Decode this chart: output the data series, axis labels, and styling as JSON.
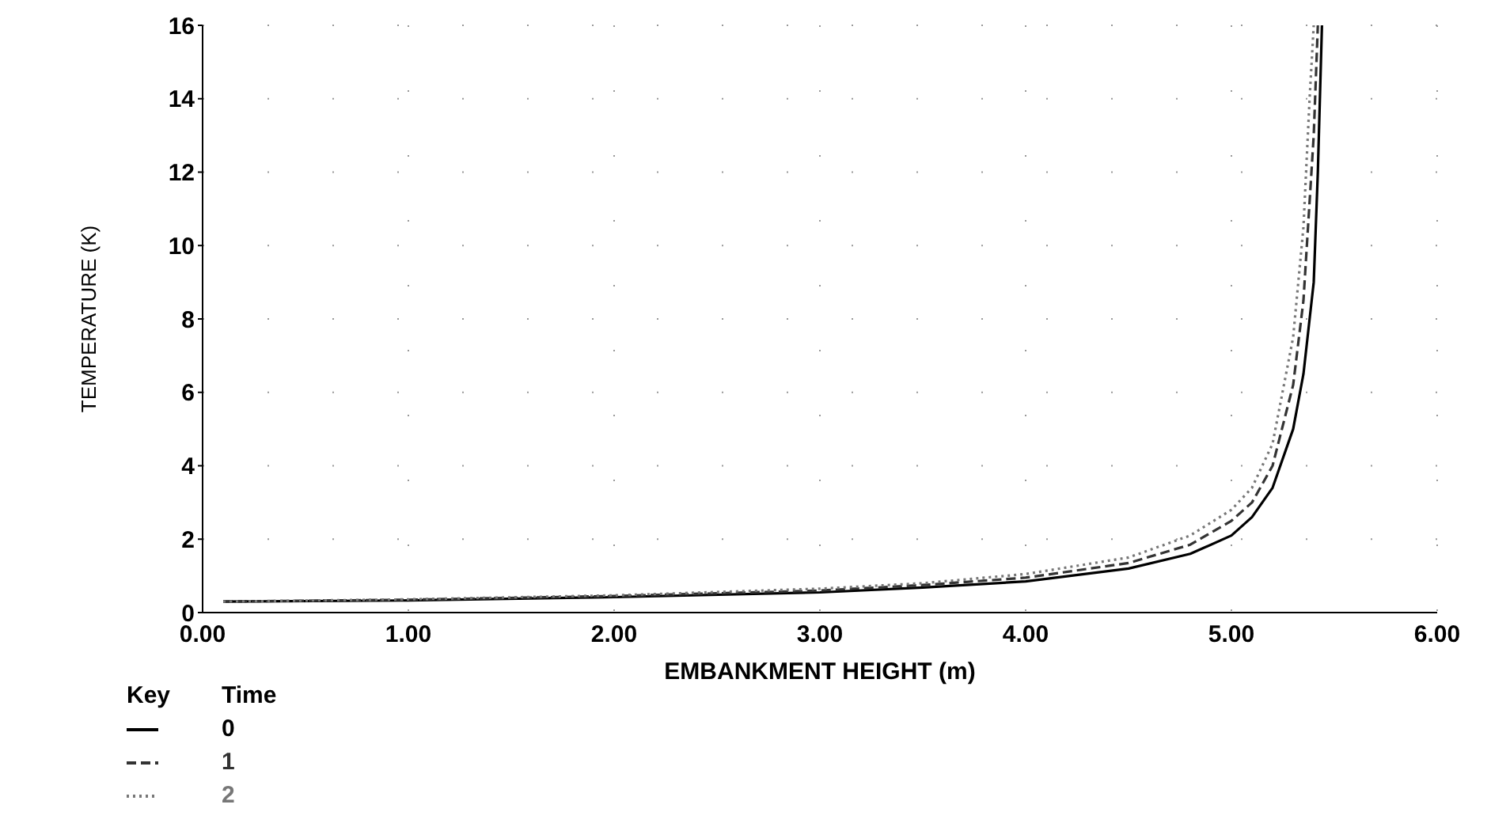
{
  "chart_data": {
    "type": "line",
    "xlabel": "EMBANKMENT HEIGHT (m)",
    "ylabel": "TEMPERATURE (K)",
    "legend_title": "Time",
    "annotations": [
      "Key"
    ],
    "xlim": [
      0,
      6
    ],
    "xticks": [
      {
        "value": 0,
        "label": "0.00"
      },
      {
        "value": 1,
        "label": "1.00"
      },
      {
        "value": 2,
        "label": "2.00"
      },
      {
        "value": 3,
        "label": "3.00"
      },
      {
        "value": 4,
        "label": "4.00"
      },
      {
        "value": 5,
        "label": "5.00"
      },
      {
        "value": 6,
        "label": "6.00"
      }
    ],
    "ylim": [
      0,
      16
    ],
    "yticks": [
      0,
      2,
      4,
      6,
      8,
      10,
      12,
      14,
      16
    ],
    "grid": true,
    "legend": "bottom",
    "marker": "none",
    "series": [
      {
        "name": "0",
        "color": "#000000",
        "line_style": "solid",
        "x": [
          0.1,
          1,
          2,
          3,
          3.5,
          4,
          4.5,
          4.8,
          5.0,
          5.1,
          5.2,
          5.3,
          5.35,
          5.4,
          5.42,
          5.44
        ],
        "values": [
          0.3,
          0.33,
          0.42,
          0.55,
          0.68,
          0.85,
          1.2,
          1.6,
          2.1,
          2.6,
          3.4,
          5.0,
          6.5,
          9,
          12,
          16
        ]
      },
      {
        "name": "1",
        "color": "#333333",
        "line_style": "dashed",
        "x": [
          0.1,
          1,
          2,
          3,
          3.5,
          4,
          4.5,
          4.8,
          5.0,
          5.1,
          5.2,
          5.3,
          5.35,
          5.4,
          5.42
        ],
        "values": [
          0.3,
          0.35,
          0.45,
          0.6,
          0.75,
          0.95,
          1.35,
          1.85,
          2.5,
          3.0,
          4.0,
          6.2,
          8.5,
          13,
          16
        ]
      },
      {
        "name": "2",
        "color": "#777777",
        "line_style": "dotted",
        "x": [
          0.1,
          1,
          2,
          3,
          3.5,
          4,
          4.5,
          4.8,
          5.0,
          5.1,
          5.2,
          5.3,
          5.35,
          5.38,
          5.4
        ],
        "values": [
          0.3,
          0.36,
          0.47,
          0.65,
          0.8,
          1.05,
          1.5,
          2.1,
          2.8,
          3.4,
          4.6,
          7.5,
          10.5,
          14,
          16
        ]
      }
    ]
  }
}
